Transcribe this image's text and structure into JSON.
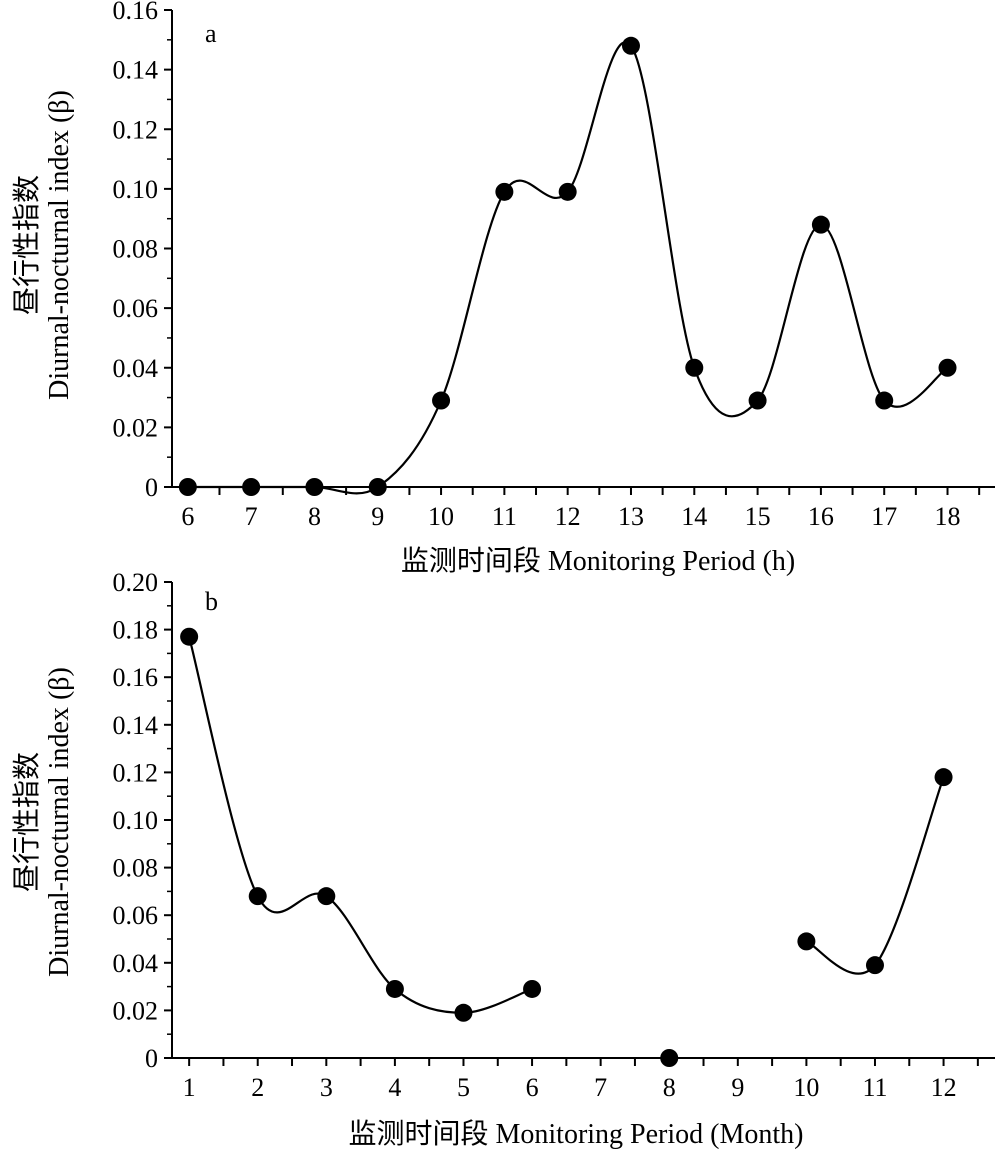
{
  "chart_data": [
    {
      "type": "line",
      "panel_label": "a",
      "xlabel": "监测时间段 Monitoring Period (h)",
      "ylabel_line1": "昼行性指数",
      "ylabel_line2": "Diurnal-nocturnal index (β)",
      "categories": [
        "6",
        "7",
        "8",
        "9",
        "10",
        "11",
        "12",
        "13",
        "14",
        "15",
        "16",
        "17",
        "18"
      ],
      "x": [
        6,
        7,
        8,
        9,
        10,
        11,
        12,
        13,
        14,
        15,
        16,
        17,
        18
      ],
      "y_ticks": [
        "0",
        "0.02",
        "0.04",
        "0.06",
        "0.08",
        "0.10",
        "0.12",
        "0.14",
        "0.16"
      ],
      "ylim": [
        0,
        0.16
      ],
      "xlim": [
        5.75,
        18.75
      ],
      "series": [
        {
          "segments": [
            {
              "x": [
                6,
                7,
                8,
                9,
                10,
                11,
                12,
                13,
                14,
                15,
                16,
                17,
                18
              ],
              "y": [
                0,
                0,
                0,
                0,
                0.029,
                0.099,
                0.099,
                0.148,
                0.04,
                0.029,
                0.088,
                0.029,
                0.04
              ]
            }
          ]
        }
      ],
      "grid": false,
      "marker": "filled-circle",
      "line": "smooth"
    },
    {
      "type": "line",
      "panel_label": "b",
      "xlabel": "监测时间段 Monitoring Period (Month)",
      "ylabel_line1": "昼行性指数",
      "ylabel_line2": "Diurnal-nocturnal index (β)",
      "categories": [
        "1",
        "2",
        "3",
        "4",
        "5",
        "6",
        "7",
        "8",
        "9",
        "10",
        "11",
        "12"
      ],
      "x": [
        1,
        2,
        3,
        4,
        5,
        6,
        7,
        8,
        9,
        10,
        11,
        12
      ],
      "y_ticks": [
        "0",
        "0.02",
        "0.04",
        "0.06",
        "0.08",
        "0.10",
        "0.12",
        "0.14",
        "0.16",
        "0.18",
        "0.20"
      ],
      "ylim": [
        0,
        0.2
      ],
      "xlim": [
        0.75,
        12.75
      ],
      "series": [
        {
          "segments": [
            {
              "x": [
                1,
                2,
                3,
                4,
                5,
                6
              ],
              "y": [
                0.177,
                0.068,
                0.068,
                0.029,
                0.019,
                0.029
              ]
            },
            {
              "x": [
                8
              ],
              "y": [
                0
              ]
            },
            {
              "x": [
                10,
                11,
                12
              ],
              "y": [
                0.049,
                0.039,
                0.118
              ]
            }
          ]
        }
      ],
      "grid": false,
      "marker": "filled-circle",
      "line": "smooth"
    }
  ]
}
